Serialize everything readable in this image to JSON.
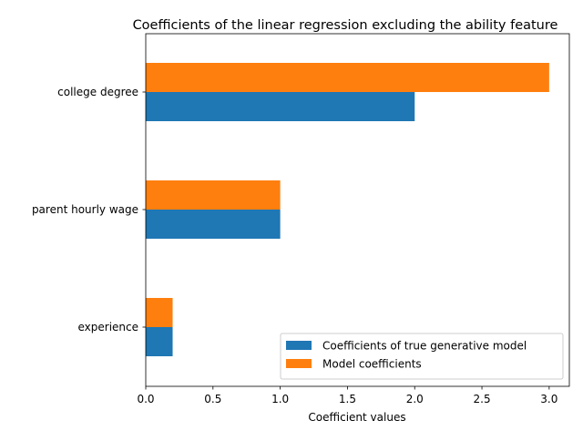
{
  "chart_data": {
    "type": "bar",
    "orientation": "horizontal",
    "title": "Coefficients of the linear regression excluding the ability feature",
    "xlabel": "Coefficient values",
    "ylabel": "",
    "categories": [
      "college degree",
      "parent hourly wage",
      "experience"
    ],
    "series": [
      {
        "name": "Coefficients of true generative model",
        "values": [
          2.0,
          1.0,
          0.2
        ],
        "color": "#1f77b4"
      },
      {
        "name": "Model coefficients",
        "values": [
          3.0,
          1.0,
          0.2
        ],
        "color": "#ff7f0e"
      }
    ],
    "xlim": [
      0.0,
      3.15
    ],
    "xticks": [
      "0.0",
      "0.5",
      "1.0",
      "1.5",
      "2.0",
      "2.5",
      "3.0"
    ],
    "grid": false,
    "legend_position": "lower-right"
  }
}
